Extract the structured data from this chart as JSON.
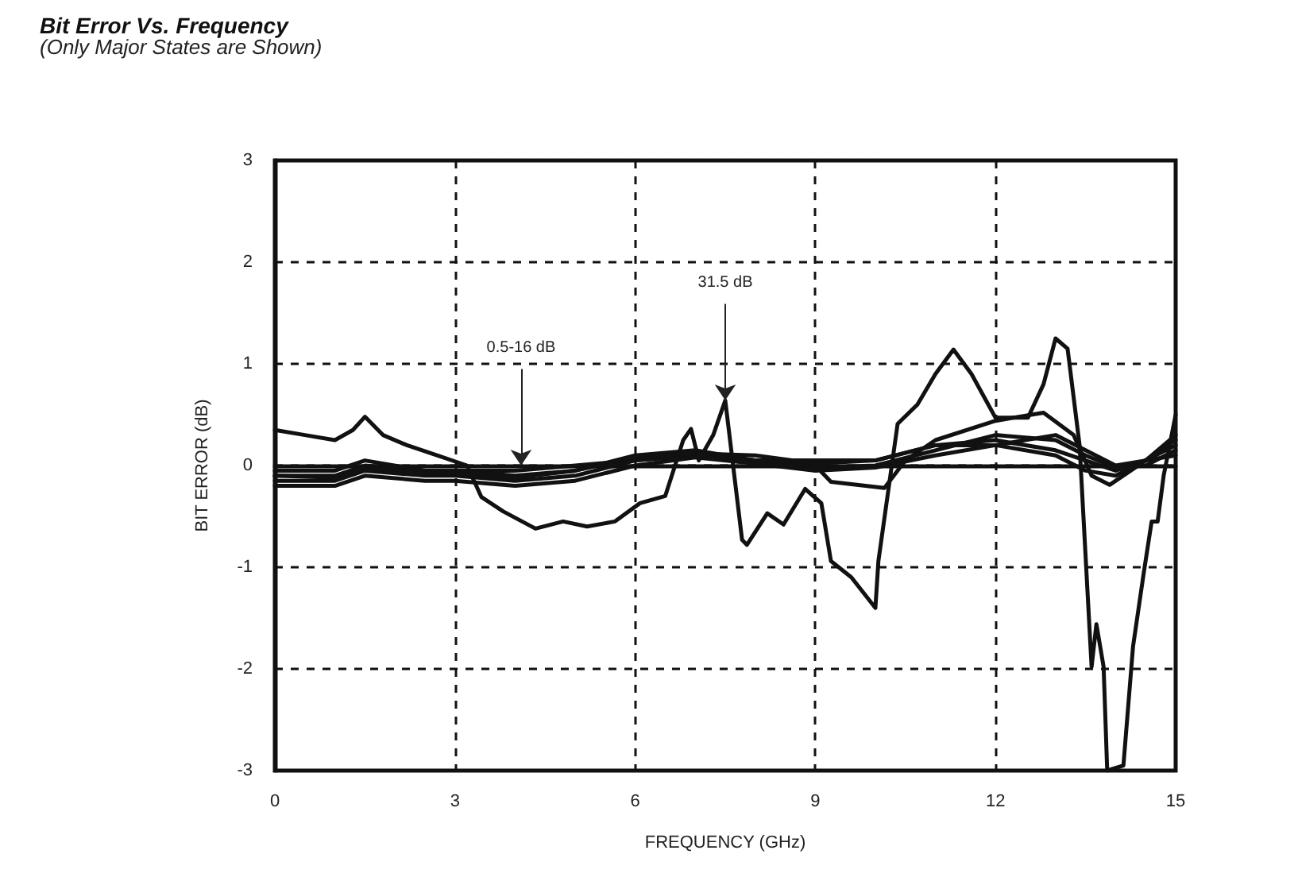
{
  "chart_data": {
    "type": "line",
    "title": "Bit Error Vs. Frequency",
    "subtitle": "(Only Major States are Shown)",
    "xlabel": "FREQUENCY (GHz)",
    "ylabel": "BIT ERROR (dB)",
    "xlim": [
      0,
      15
    ],
    "xticks": [
      0,
      3,
      6,
      9,
      12,
      15
    ],
    "ylim": [
      -3,
      3
    ],
    "yticks": [
      -3,
      -2,
      -1,
      0,
      1,
      2,
      3
    ],
    "grid": true,
    "marker": "none",
    "line_style": "solid",
    "annotations": [
      {
        "text": "0.5-16 dB",
        "x": 4.1,
        "y": 0
      },
      {
        "text": "31.5 dB",
        "x": 7.5,
        "y": 0.64
      }
    ],
    "series": [
      {
        "color": "#111111",
        "x": [
          0,
          0.5,
          1,
          1.3,
          1.5,
          1.8,
          2.2,
          2.7,
          3.2,
          3.44,
          3.8,
          4.34,
          4.8,
          5.2,
          5.66,
          6.08,
          6.5,
          6.8,
          6.93,
          7.06,
          7.3,
          7.5,
          7.78,
          7.86,
          8.2,
          8.47,
          8.83,
          9.1,
          9.26,
          9.6,
          10,
          10.05,
          10.37,
          10.7,
          11.0,
          11.3,
          11.6,
          12.0,
          12.54,
          12.8,
          13.0,
          13.2,
          13.4,
          13.6,
          13.68,
          13.8,
          13.86,
          14.13,
          14.29,
          14.47,
          14.6,
          14.7,
          14.8,
          15
        ],
        "values": [
          0.35,
          0.3,
          0.25,
          0.35,
          0.48,
          0.3,
          0.2,
          0.1,
          0,
          -0.31,
          -0.45,
          -0.62,
          -0.55,
          -0.6,
          -0.55,
          -0.37,
          -0.3,
          0.25,
          0.36,
          0.05,
          0.3,
          0.64,
          -0.73,
          -0.78,
          -0.47,
          -0.58,
          -0.23,
          -0.37,
          -0.94,
          -1.1,
          -1.4,
          -0.94,
          0.41,
          0.6,
          0.9,
          1.14,
          0.9,
          0.47,
          0.47,
          0.8,
          1.25,
          1.15,
          0.2,
          -1.98,
          -1.56,
          -1.98,
          -3,
          -2.95,
          -1.78,
          -1.05,
          -0.55,
          -0.55,
          -0.1,
          0.5
        ]
      },
      {
        "color": "#111111",
        "x": [
          0,
          1,
          1.5,
          2.5,
          3,
          4,
          5,
          6,
          7,
          8,
          9,
          9.26,
          10.15,
          10.5,
          11,
          12,
          12.8,
          13.3,
          13.6,
          13.9,
          14.5,
          15
        ],
        "values": [
          -0.05,
          -0.05,
          0.05,
          -0.05,
          -0.05,
          -0.1,
          -0.05,
          0.1,
          0.15,
          0.05,
          0,
          -0.16,
          -0.22,
          0.05,
          0.25,
          0.44,
          0.52,
          0.3,
          -0.1,
          -0.19,
          0.05,
          0.3
        ]
      },
      {
        "color": "#111111",
        "x": [
          0,
          1,
          1.5,
          2.5,
          3,
          4,
          5,
          6,
          7,
          8,
          9,
          10,
          11,
          12,
          13,
          13.5,
          14,
          14.5,
          15
        ],
        "values": [
          -0.1,
          -0.1,
          0,
          -0.05,
          -0.05,
          -0.05,
          0,
          0.05,
          0.1,
          0.05,
          0.05,
          0.05,
          0.2,
          0.25,
          0.15,
          0.05,
          -0.05,
          0.05,
          0.2
        ]
      },
      {
        "color": "#111111",
        "x": [
          0,
          1,
          1.5,
          2.5,
          3,
          4,
          5,
          6,
          7,
          8,
          9,
          10,
          11,
          12,
          13,
          13.5,
          14,
          14.5,
          15
        ],
        "values": [
          -0.15,
          -0.15,
          -0.05,
          -0.1,
          -0.1,
          -0.15,
          -0.1,
          0.05,
          0.1,
          0.05,
          -0.02,
          0,
          0.15,
          0.3,
          0.25,
          0.1,
          -0.02,
          0,
          0.15
        ]
      },
      {
        "color": "#111111",
        "x": [
          0,
          1,
          1.5,
          2.5,
          3,
          4,
          5,
          6,
          7,
          8,
          9,
          10,
          11,
          12,
          13,
          13.5,
          14,
          14.5,
          15
        ],
        "values": [
          -0.2,
          -0.2,
          -0.1,
          -0.15,
          -0.15,
          -0.2,
          -0.15,
          0,
          0.08,
          0.02,
          -0.05,
          -0.02,
          0.1,
          0.2,
          0.3,
          0.15,
          0,
          0.05,
          0.1
        ]
      },
      {
        "color": "#111111",
        "x": [
          0,
          1,
          1.5,
          2.5,
          3,
          4,
          5,
          6,
          7,
          8,
          9,
          10,
          11,
          12,
          13,
          13.5,
          14,
          14.5,
          15
        ],
        "values": [
          -0.1,
          -0.12,
          -0.02,
          -0.08,
          -0.08,
          -0.12,
          -0.05,
          0.08,
          0.12,
          0.1,
          0.02,
          0.05,
          0.2,
          0.2,
          0.1,
          -0.05,
          -0.1,
          0.05,
          0.25
        ]
      }
    ]
  }
}
